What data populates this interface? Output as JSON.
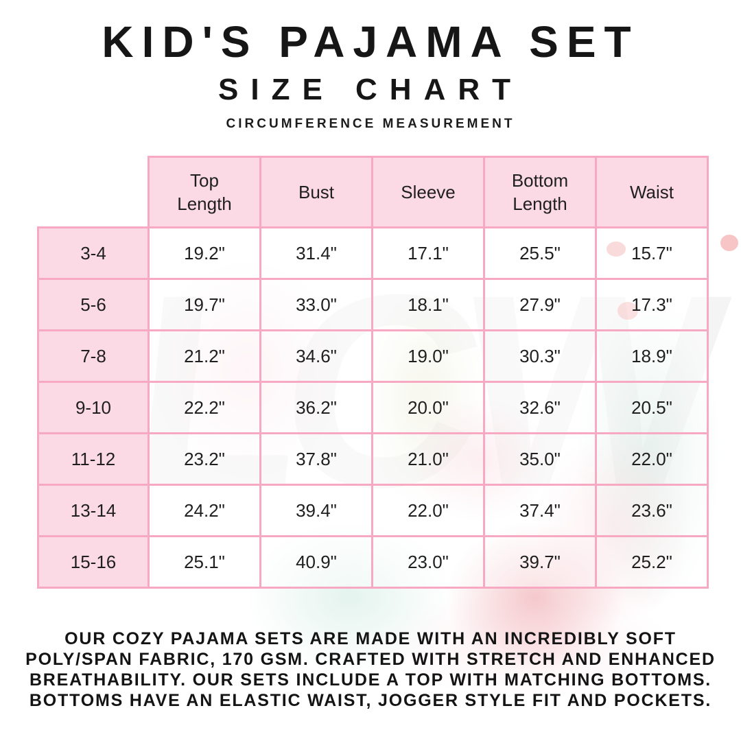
{
  "page": {
    "title": "KID'S PAJAMA SET",
    "subtitle": "SIZE CHART",
    "tagline": "CIRCUMFERENCE MEASUREMENT"
  },
  "chart_data": {
    "type": "table",
    "title": "KID'S PAJAMA SET SIZE CHART",
    "measurement_note": "CIRCUMFERENCE MEASUREMENT",
    "size_column_header": "",
    "columns": [
      "Top\nLength",
      "Bust",
      "Sleeve",
      "Bottom\nLength",
      "Waist"
    ],
    "rows": [
      {
        "size": "3-4",
        "values": [
          "19.2\"",
          "31.4\"",
          "17.1\"",
          "25.5\"",
          "15.7\""
        ]
      },
      {
        "size": "5-6",
        "values": [
          "19.7\"",
          "33.0\"",
          "18.1\"",
          "27.9\"",
          "17.3\""
        ]
      },
      {
        "size": "7-8",
        "values": [
          "21.2\"",
          "34.6\"",
          "19.0\"",
          "30.3\"",
          "18.9\""
        ]
      },
      {
        "size": "9-10",
        "values": [
          "22.2\"",
          "36.2\"",
          "20.0\"",
          "32.6\"",
          "20.5\""
        ]
      },
      {
        "size": "11-12",
        "values": [
          "23.2\"",
          "37.8\"",
          "21.0\"",
          "35.0\"",
          "22.0\""
        ]
      },
      {
        "size": "13-14",
        "values": [
          "24.2\"",
          "39.4\"",
          "22.0\"",
          "37.4\"",
          "23.6\""
        ]
      },
      {
        "size": "15-16",
        "values": [
          "25.1\"",
          "40.9\"",
          "23.0\"",
          "39.7\"",
          "25.2\""
        ]
      }
    ],
    "units": "inches"
  },
  "description": {
    "lines": [
      "OUR COZY PAJAMA SETS ARE MADE WITH AN INCREDIBLY SOFT",
      "POLY/SPAN FABRIC, 170 GSM. CRAFTED WITH STRETCH AND ENHANCED",
      "BREATHABILITY. OUR SETS INCLUDE A TOP WITH MATCHING BOTTOMS.",
      "BOTTOMS HAVE AN ELASTIC WAIST, JOGGER STYLE FIT AND POCKETS."
    ]
  },
  "watermark": {
    "text": "LCW"
  },
  "colors": {
    "table_border": "#f7a8c3",
    "header_fill": "#fbd9e5",
    "text": "#1c1c1c"
  }
}
